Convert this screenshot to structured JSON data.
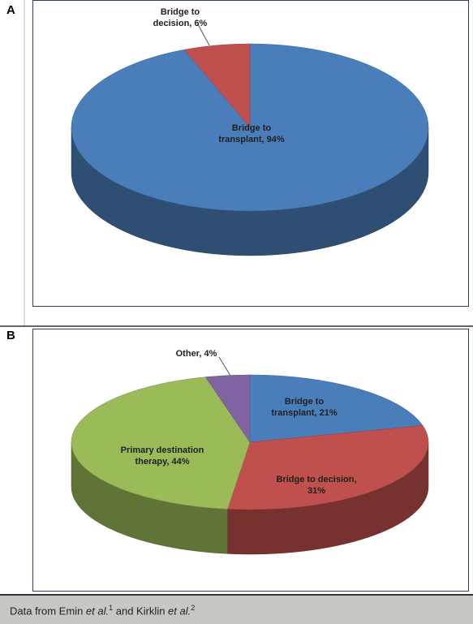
{
  "chart_data": [
    {
      "type": "pie",
      "label": "A",
      "categories": [
        "Bridge to transplant",
        "Bridge to decision"
      ],
      "values": [
        94,
        6
      ],
      "value_labels": [
        "Bridge to transplant, 94%",
        "Bridge to decision, 6%"
      ],
      "colors": [
        "#4a7ebb",
        "#c0504d"
      ]
    },
    {
      "type": "pie",
      "label": "B",
      "categories": [
        "Bridge to transplant",
        "Bridge to decision",
        "Primary destination therapy",
        "Other"
      ],
      "values": [
        21,
        31,
        44,
        4
      ],
      "value_labels": [
        "Bridge to transplant, 21%",
        "Bridge to decision, 31%",
        "Primary destination therapy, 44%",
        "Other, 4%"
      ],
      "colors": [
        "#4a7ebb",
        "#c0504d",
        "#9bbb59",
        "#8064a2"
      ]
    }
  ],
  "caption": [
    "Data from Emin ",
    "et al.",
    "1",
    " and Kirklin ",
    "et al.",
    "2"
  ]
}
